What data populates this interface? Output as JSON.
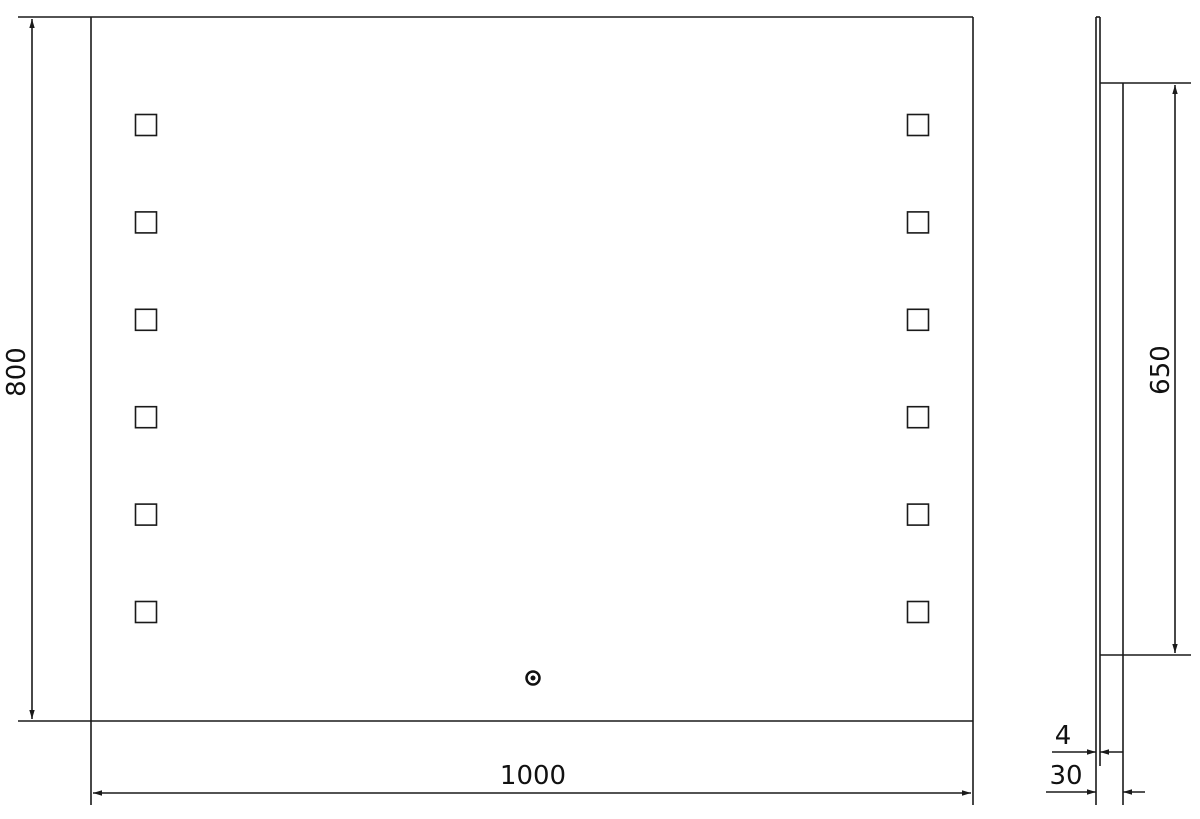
{
  "drawing": {
    "front_view": {
      "width_label": "1000",
      "height_label": "800",
      "led_squares_per_side": 6,
      "has_sensor_switch": true
    },
    "side_view": {
      "frame_height_label": "650",
      "glass_thickness_label": "4",
      "total_depth_label": "30"
    },
    "colors": {
      "line": "#1a1a1a",
      "background": "#ffffff"
    }
  }
}
